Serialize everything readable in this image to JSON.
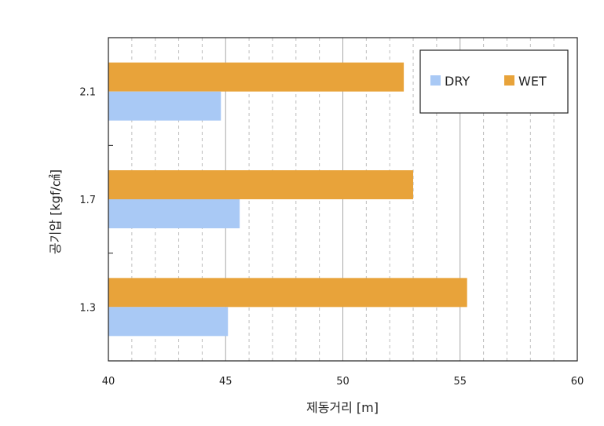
{
  "chart_data": {
    "type": "bar",
    "orientation": "horizontal",
    "categories": [
      "2.1",
      "1.7",
      "1.3"
    ],
    "series": [
      {
        "name": "WET",
        "color": "#E8A33A",
        "values": [
          52.6,
          53.0,
          55.3
        ]
      },
      {
        "name": "DRY",
        "color": "#A9C9F5",
        "values": [
          44.8,
          45.6,
          45.1
        ]
      }
    ],
    "xlabel": "제동거리 [m]",
    "ylabel": "공기압 [kgf/㎠]",
    "xlim": [
      40,
      60
    ],
    "xticks": [
      40,
      45,
      50,
      55,
      60
    ],
    "grid": true,
    "legend_position": "top-right",
    "legend_order": [
      "DRY",
      "WET"
    ]
  }
}
